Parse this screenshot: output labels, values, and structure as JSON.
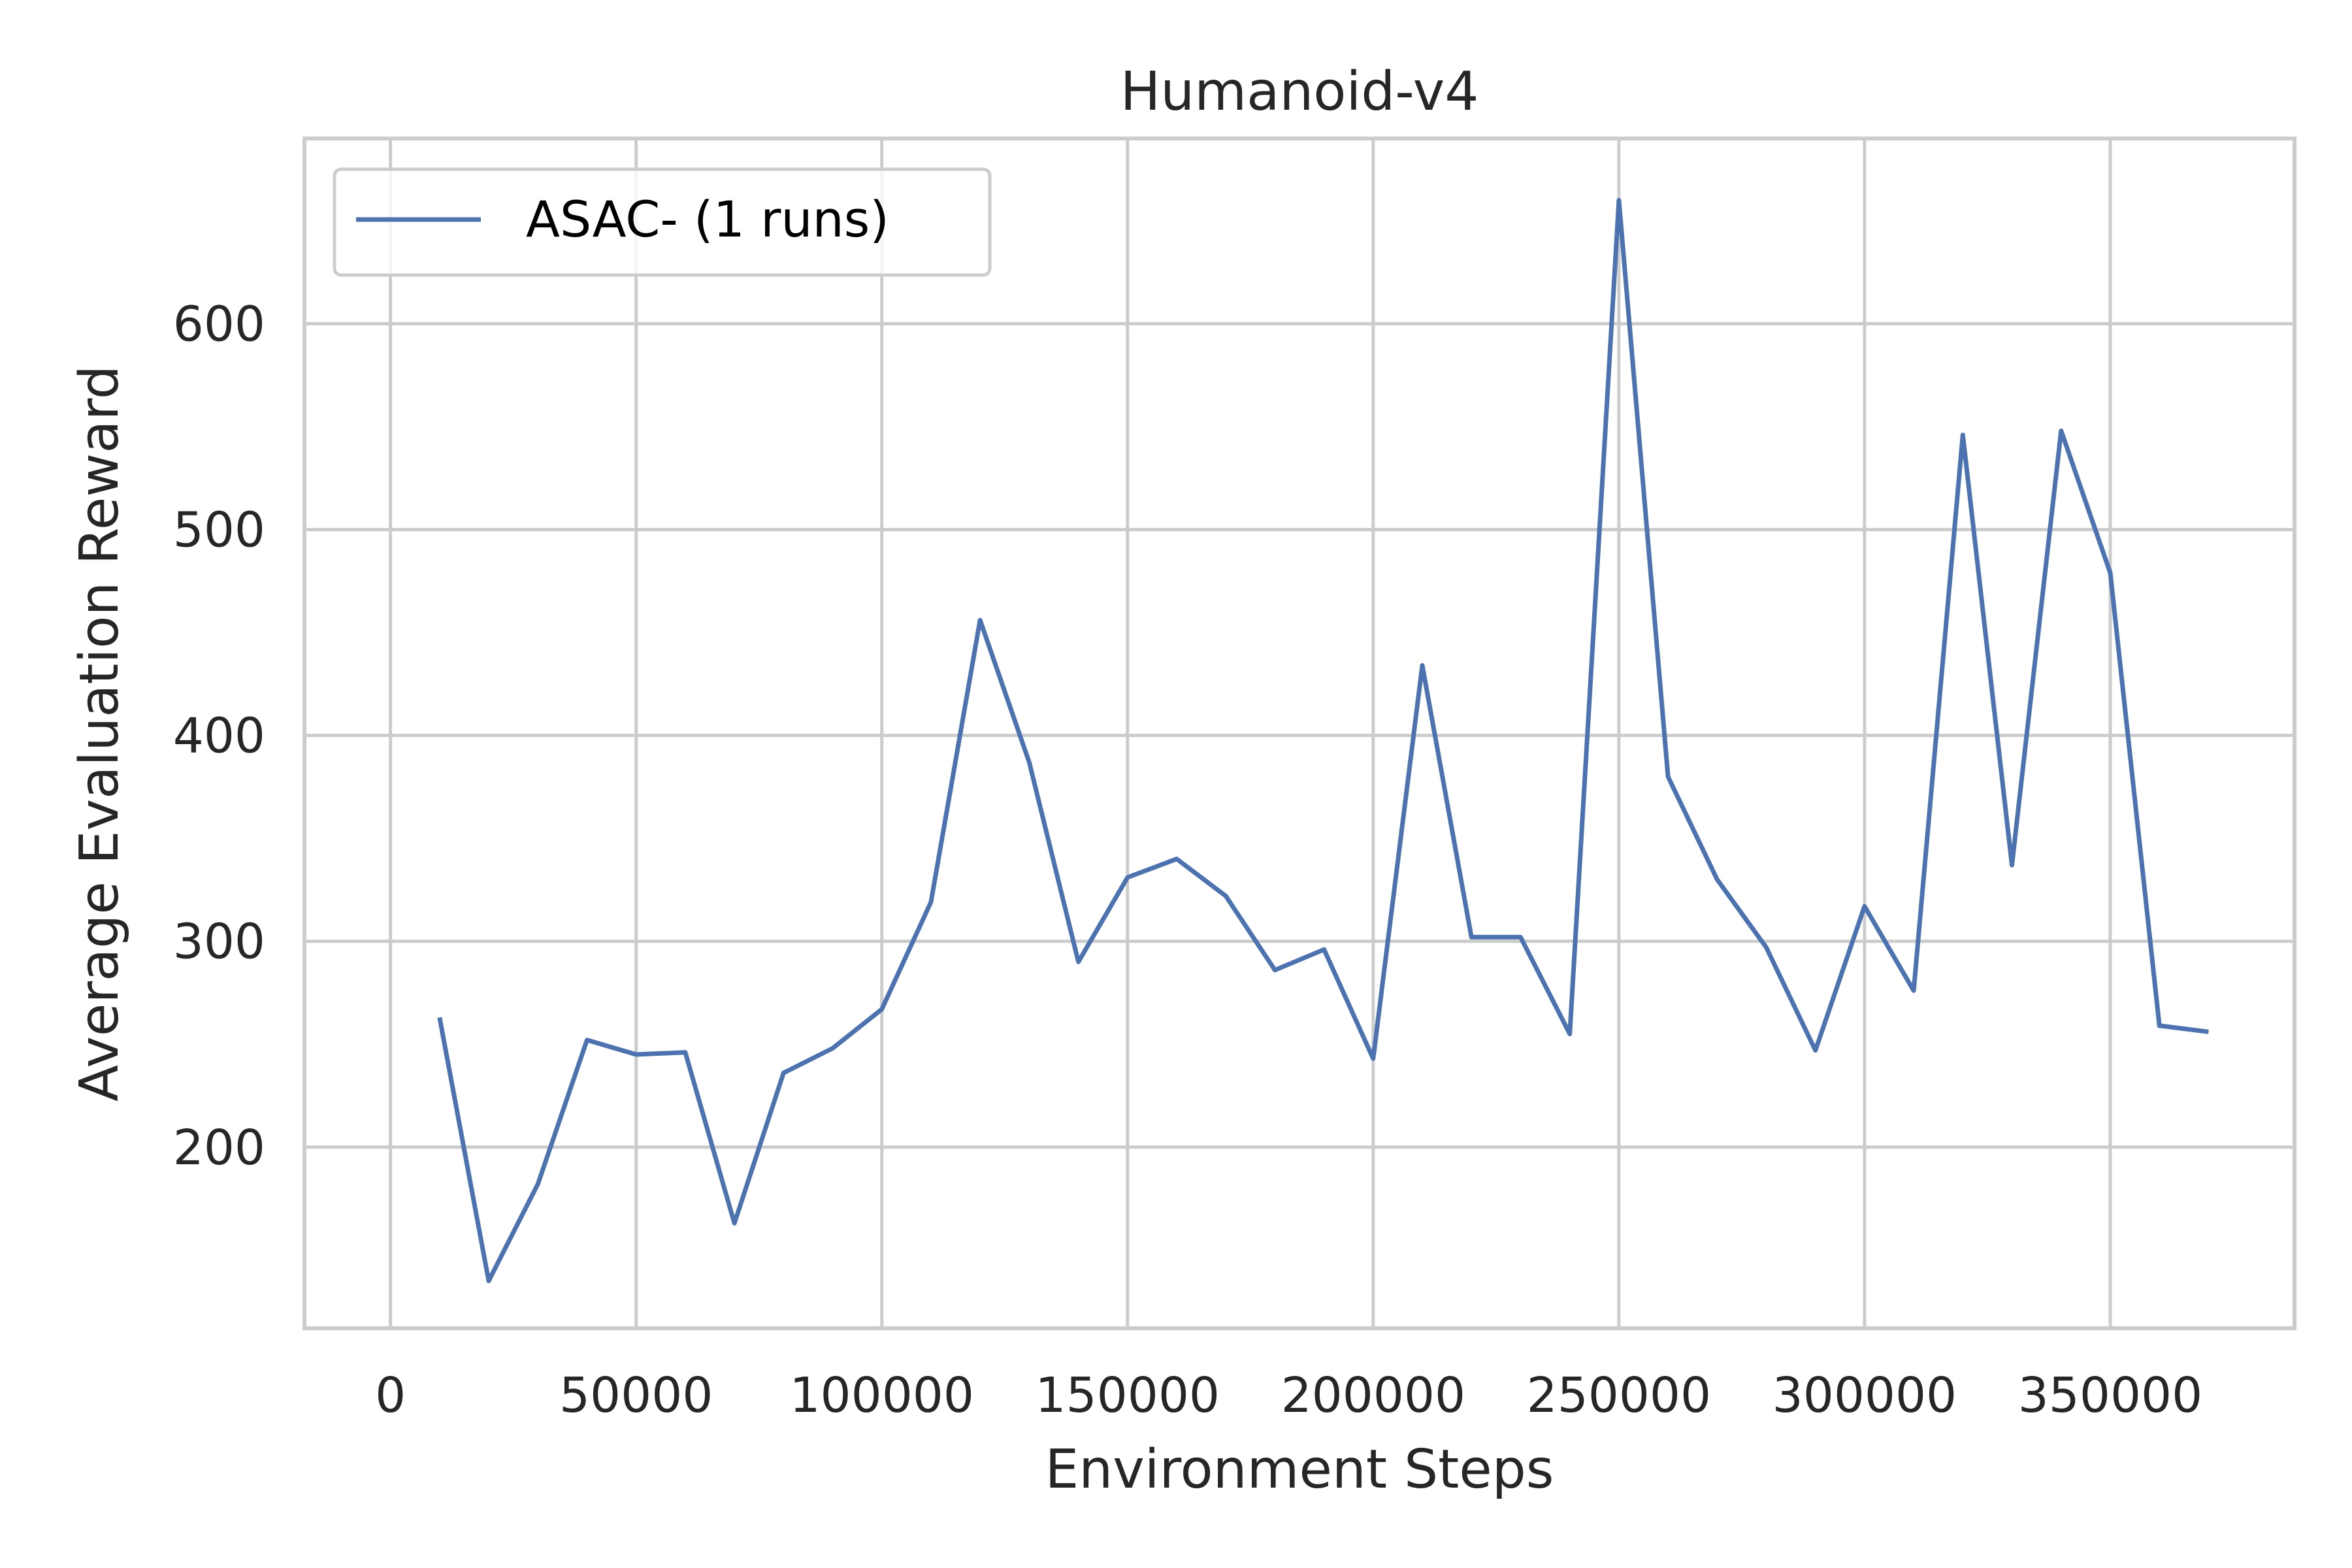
{
  "chart_data": {
    "type": "line",
    "title": "Humanoid-v4",
    "xlabel": "Environment Steps",
    "ylabel": "Average Evaluation Reward",
    "xlim": [
      -17500,
      387500
    ],
    "ylim": [
      112,
      690
    ],
    "x_ticks": [
      0,
      50000,
      100000,
      150000,
      200000,
      250000,
      300000,
      350000
    ],
    "y_ticks": [
      200,
      300,
      400,
      500,
      600
    ],
    "grid": true,
    "legend_position": "top-left",
    "series": [
      {
        "name": "ASAC- (1 runs)",
        "color": "#4c72b0",
        "x": [
          10000,
          20000,
          30000,
          40000,
          50000,
          60000,
          70000,
          80000,
          90000,
          100000,
          110000,
          120000,
          130000,
          140000,
          150000,
          160000,
          170000,
          180000,
          190000,
          200000,
          210000,
          220000,
          230000,
          240000,
          250000,
          260000,
          270000,
          280000,
          290000,
          300000,
          310000,
          320000,
          330000,
          340000,
          350000,
          360000,
          370000
        ],
        "y": [
          263,
          135,
          182,
          252,
          245,
          246,
          163,
          236,
          248,
          267,
          319,
          456,
          387,
          290,
          331,
          340,
          322,
          286,
          296,
          243,
          434,
          302,
          302,
          255,
          660,
          380,
          330,
          297,
          247,
          317,
          276,
          546,
          337,
          548,
          479,
          259,
          256
        ]
      }
    ]
  }
}
